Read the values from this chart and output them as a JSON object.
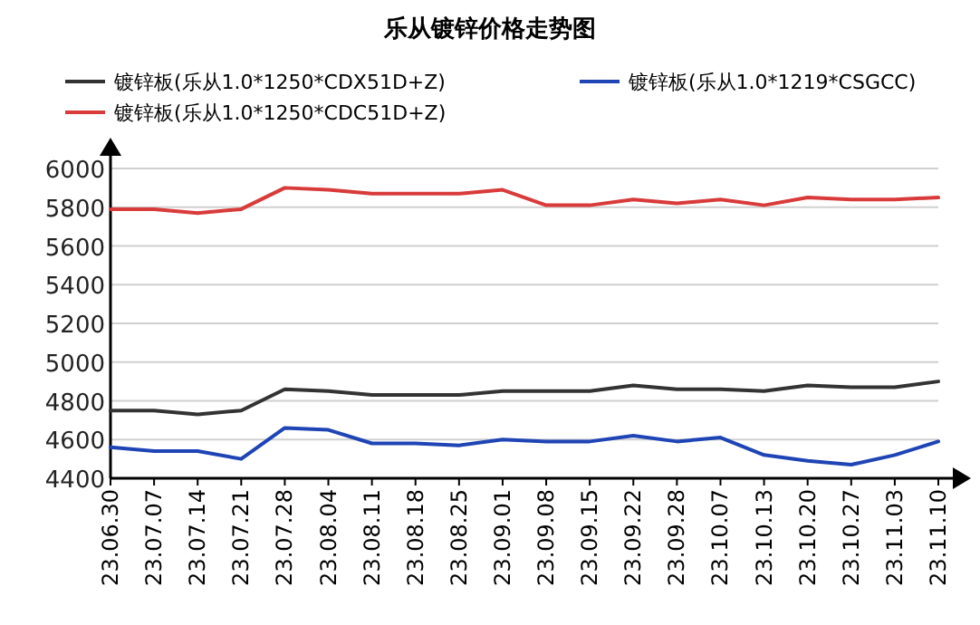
{
  "chart_data": {
    "type": "line",
    "title": "乐从镀锌价格走势图",
    "categories": [
      "23.06.30",
      "23.07.07",
      "23.07.14",
      "23.07.21",
      "23.07.28",
      "23.08.04",
      "23.08.11",
      "23.08.18",
      "23.08.25",
      "23.09.01",
      "23.09.08",
      "23.09.15",
      "23.09.22",
      "23.09.28",
      "23.10.07",
      "23.10.13",
      "23.10.20",
      "23.10.27",
      "23.11.03",
      "23.11.10"
    ],
    "series": [
      {
        "name": "镀锌板(乐从1.0*1250*CDX51D+Z)",
        "color": "#333333",
        "values": [
          4750,
          4750,
          4730,
          4750,
          4860,
          4850,
          4830,
          4830,
          4830,
          4850,
          4850,
          4850,
          4880,
          4860,
          4860,
          4850,
          4880,
          4870,
          4870,
          4900
        ]
      },
      {
        "name": "镀锌板(乐从1.0*1219*CSGCC)",
        "color": "#1f44b5",
        "values": [
          4560,
          4540,
          4540,
          4500,
          4660,
          4650,
          4580,
          4580,
          4570,
          4600,
          4590,
          4590,
          4620,
          4590,
          4610,
          4520,
          4490,
          4470,
          4520,
          4590
        ]
      },
      {
        "name": "镀锌板(乐从1.0*1250*CDC51D+Z)",
        "color": "#d93a3a",
        "values": [
          5790,
          5790,
          5770,
          5790,
          5900,
          5890,
          5870,
          5870,
          5870,
          5890,
          5810,
          5810,
          5840,
          5820,
          5840,
          5810,
          5850,
          5840,
          5840,
          5850
        ]
      }
    ],
    "ylim": [
      4400,
      6000
    ],
    "yticks": [
      4400,
      4600,
      4800,
      5000,
      5200,
      5400,
      5600,
      5800,
      6000
    ],
    "grid": "y",
    "legend": "top",
    "marker": "none",
    "line_style": "solid"
  }
}
